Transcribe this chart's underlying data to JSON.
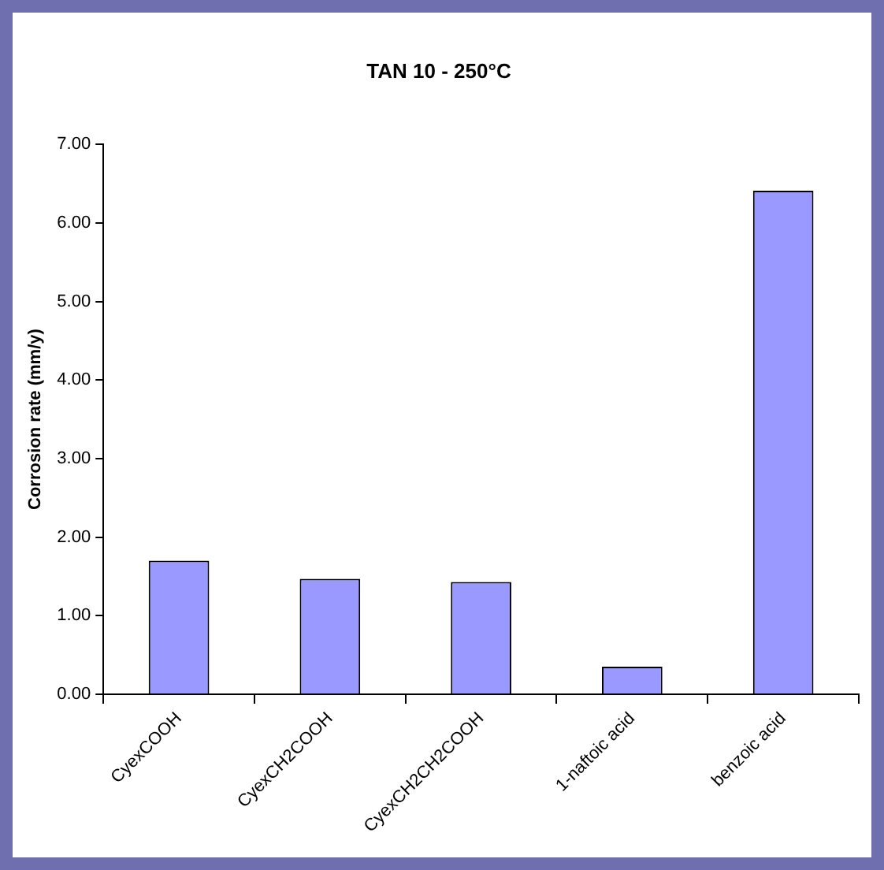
{
  "chart_data": {
    "type": "bar",
    "title": "TAN 10 - 250°C",
    "ylabel": "Corrosion rate (mm/y)",
    "categories": [
      "CyexCOOH",
      "CyexCH2COOH",
      "CyexCH2CH2COOH",
      "1-naftoic acid",
      "benzoic acid"
    ],
    "values": [
      1.7,
      1.47,
      1.43,
      0.35,
      6.41
    ],
    "color": "#9999ff",
    "ylim": [
      0,
      7
    ],
    "yticks": [
      {
        "value": 0,
        "label": "0.00"
      },
      {
        "value": 1,
        "label": "1.00"
      },
      {
        "value": 2,
        "label": "2.00"
      },
      {
        "value": 3,
        "label": "3.00"
      },
      {
        "value": 4,
        "label": "4.00"
      },
      {
        "value": 5,
        "label": "5.00"
      },
      {
        "value": 6,
        "label": "6.00"
      },
      {
        "value": 7,
        "label": "7.00"
      }
    ],
    "grid": false,
    "legend": false
  }
}
